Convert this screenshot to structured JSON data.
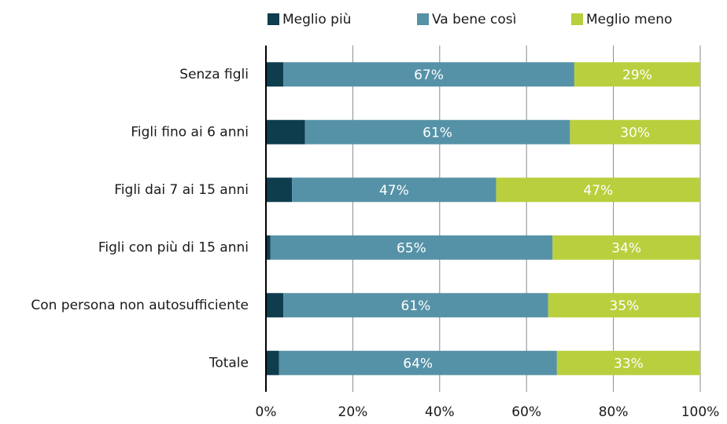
{
  "chart_data": {
    "type": "stacked_barh",
    "categories": [
      "Senza figli",
      "Figli fino ai 6 anni",
      "Figli dai 7 ai 15 anni",
      "Figli con più di 15 anni",
      "Con persona non autosufficiente",
      "Totale"
    ],
    "series": [
      {
        "name": "Meglio più",
        "color": "#0e3d4e",
        "values": [
          4,
          9,
          6,
          1,
          4,
          3
        ]
      },
      {
        "name": "Va bene così",
        "color": "#5692a7",
        "values": [
          67,
          61,
          47,
          65,
          61,
          64
        ],
        "value_labels": [
          "67%",
          "61%",
          "47%",
          "65%",
          "61%",
          "64%"
        ]
      },
      {
        "name": "Meglio meno",
        "color": "#b9cf3d",
        "values": [
          29,
          30,
          47,
          34,
          35,
          33
        ],
        "value_labels": [
          "29%",
          "30%",
          "47%",
          "34%",
          "35%",
          "33%"
        ]
      }
    ],
    "xlim": [
      0,
      100
    ],
    "xticks": [
      {
        "value": 0,
        "label": "0%"
      },
      {
        "value": 20,
        "label": "20%"
      },
      {
        "value": 40,
        "label": "40%"
      },
      {
        "value": 60,
        "label": "60%"
      },
      {
        "value": 80,
        "label": "80%"
      },
      {
        "value": 100,
        "label": "100%"
      }
    ],
    "grid": true,
    "legend": "top"
  }
}
